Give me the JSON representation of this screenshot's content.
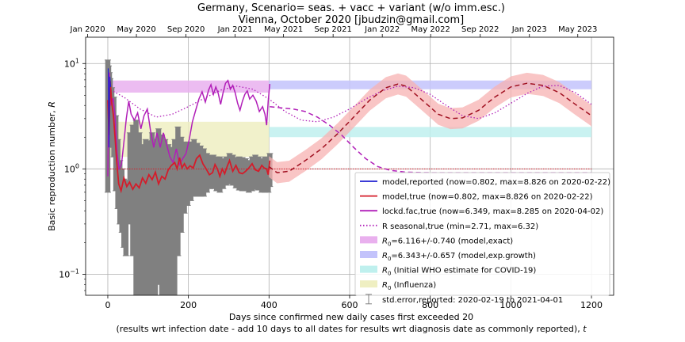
{
  "chart_data": {
    "type": "line",
    "title_line1": "Germany, Scenario= seas. + vacc + variant (w/o imm.esc.)",
    "title_line2": "Vienna, October 2020 [jbudzin@gmail.com]",
    "xlabel_line1": "Days since confirmed new daily cases first exceeded 20",
    "xlabel_line2": "(results wrt infection date - add 10 days to all dates for results wrt diagnosis date as commonly reported), ",
    "xlabel_italic": "t",
    "ylabel": "Basic reproduction number, ",
    "ylabel_italic": "R",
    "xlim": [
      -55,
      1255
    ],
    "ylim_log10": [
      -1.2,
      1.25
    ],
    "yscale": "log",
    "grid": true,
    "legend_position": "lower-right",
    "x_ticks": [
      0,
      200,
      400,
      600,
      800,
      1000,
      1200
    ],
    "y_ticks": [
      {
        "value": 0.1,
        "base": "10",
        "exp": "−1"
      },
      {
        "value": 1,
        "base": "10",
        "exp": "0"
      },
      {
        "value": 10,
        "base": "10",
        "exp": "1"
      }
    ],
    "top_axis_dates": [
      {
        "label": "Jan 2020",
        "x": -50
      },
      {
        "label": "May 2020",
        "x": 71
      },
      {
        "label": "Sep 2020",
        "x": 194
      },
      {
        "label": "Jan 2021",
        "x": 316
      },
      {
        "label": "May 2021",
        "x": 436
      },
      {
        "label": "Sep 2021",
        "x": 559
      },
      {
        "label": "Jan 2022",
        "x": 681
      },
      {
        "label": "May 2022",
        "x": 801
      },
      {
        "label": "Sep 2022",
        "x": 924
      },
      {
        "label": "Jan 2023",
        "x": 1046
      },
      {
        "label": "May 2023",
        "x": 1166
      }
    ],
    "bands": [
      {
        "name": "R0 model exact",
        "x": [
          0,
          400
        ],
        "y": [
          5.3,
          6.9
        ],
        "color": "#e9b0ee"
      },
      {
        "name": "R0 model exp growth",
        "x": [
          400,
          1200
        ],
        "y": [
          5.7,
          6.9
        ],
        "color": "#c3c3fb"
      },
      {
        "name": "R0 WHO",
        "x": [
          400,
          1200
        ],
        "y": [
          2.0,
          2.5
        ],
        "color": "#bff0ee"
      },
      {
        "name": "R0 influenza",
        "x": [
          0,
          400
        ],
        "y": [
          1.3,
          2.8
        ],
        "color": "#efefc2"
      }
    ],
    "series": {
      "model_true_observed": [
        [
          0,
          4.5
        ],
        [
          3,
          2.1
        ],
        [
          6,
          6.8
        ],
        [
          10,
          4.2
        ],
        [
          14,
          3.2
        ],
        [
          18,
          2.0
        ],
        [
          22,
          1.2
        ],
        [
          27,
          0.72
        ],
        [
          33,
          0.62
        ],
        [
          40,
          0.82
        ],
        [
          47,
          0.68
        ],
        [
          54,
          0.75
        ],
        [
          62,
          0.64
        ],
        [
          70,
          0.72
        ],
        [
          78,
          0.66
        ],
        [
          86,
          0.82
        ],
        [
          94,
          0.73
        ],
        [
          102,
          0.88
        ],
        [
          110,
          0.79
        ],
        [
          118,
          0.93
        ],
        [
          126,
          0.72
        ],
        [
          134,
          0.85
        ],
        [
          142,
          0.8
        ],
        [
          150,
          0.98
        ],
        [
          158,
          1.08
        ],
        [
          166,
          1.15
        ],
        [
          172,
          1.0
        ],
        [
          178,
          1.28
        ],
        [
          184,
          1.02
        ],
        [
          190,
          1.12
        ],
        [
          197,
          1.0
        ],
        [
          204,
          1.07
        ],
        [
          212,
          1.02
        ],
        [
          220,
          1.25
        ],
        [
          228,
          1.35
        ],
        [
          236,
          1.12
        ],
        [
          244,
          1.0
        ],
        [
          252,
          0.88
        ],
        [
          260,
          0.92
        ],
        [
          266,
          1.1
        ],
        [
          272,
          1.0
        ],
        [
          278,
          0.85
        ],
        [
          284,
          1.0
        ],
        [
          290,
          0.9
        ],
        [
          296,
          1.05
        ],
        [
          302,
          1.2
        ],
        [
          310,
          0.95
        ],
        [
          318,
          1.08
        ],
        [
          326,
          0.92
        ],
        [
          334,
          0.9
        ],
        [
          342,
          0.95
        ],
        [
          350,
          1.02
        ],
        [
          358,
          1.12
        ],
        [
          366,
          0.98
        ],
        [
          374,
          0.95
        ],
        [
          382,
          1.08
        ],
        [
          388,
          1.02
        ],
        [
          394,
          1.0
        ],
        [
          398,
          0.88
        ],
        [
          402,
          1.2
        ]
      ],
      "lockdown_true": [
        [
          0,
          0.85
        ],
        [
          1,
          1.8
        ],
        [
          2,
          3.8
        ],
        [
          4,
          8.2
        ],
        [
          8,
          4.0
        ],
        [
          13,
          4.7
        ],
        [
          18,
          3.2
        ],
        [
          23,
          1.4
        ],
        [
          28,
          1.0
        ],
        [
          34,
          1.1
        ],
        [
          40,
          1.8
        ],
        [
          46,
          3.0
        ],
        [
          52,
          4.4
        ],
        [
          58,
          3.3
        ],
        [
          66,
          2.9
        ],
        [
          74,
          3.4
        ],
        [
          82,
          2.4
        ],
        [
          90,
          3.2
        ],
        [
          98,
          3.7
        ],
        [
          106,
          2.3
        ],
        [
          114,
          1.6
        ],
        [
          122,
          2.2
        ],
        [
          130,
          1.6
        ],
        [
          138,
          2.2
        ],
        [
          146,
          1.7
        ],
        [
          154,
          1.3
        ],
        [
          162,
          1.15
        ],
        [
          170,
          1.55
        ],
        [
          178,
          1.1
        ],
        [
          186,
          1.25
        ],
        [
          194,
          1.4
        ],
        [
          202,
          1.9
        ],
        [
          210,
          2.8
        ],
        [
          218,
          3.6
        ],
        [
          226,
          4.6
        ],
        [
          234,
          5.4
        ],
        [
          242,
          4.3
        ],
        [
          250,
          5.6
        ],
        [
          256,
          6.3
        ],
        [
          262,
          5.1
        ],
        [
          268,
          6.0
        ],
        [
          274,
          5.2
        ],
        [
          280,
          4.1
        ],
        [
          286,
          5.3
        ],
        [
          292,
          6.5
        ],
        [
          298,
          6.9
        ],
        [
          304,
          5.7
        ],
        [
          310,
          6.2
        ],
        [
          316,
          5.3
        ],
        [
          322,
          4.2
        ],
        [
          328,
          3.6
        ],
        [
          334,
          4.4
        ],
        [
          340,
          5.1
        ],
        [
          346,
          5.5
        ],
        [
          352,
          4.6
        ],
        [
          360,
          5.0
        ],
        [
          368,
          4.4
        ],
        [
          376,
          3.5
        ],
        [
          384,
          3.9
        ],
        [
          390,
          3.3
        ],
        [
          394,
          2.6
        ],
        [
          398,
          4.4
        ],
        [
          402,
          6.4
        ]
      ],
      "lockdown_projection": [
        [
          402,
          3.9
        ],
        [
          430,
          3.8
        ],
        [
          460,
          3.7
        ],
        [
          490,
          3.5
        ],
        [
          520,
          3.1
        ],
        [
          550,
          2.6
        ],
        [
          580,
          2.1
        ],
        [
          610,
          1.6
        ],
        [
          640,
          1.25
        ],
        [
          670,
          1.05
        ],
        [
          700,
          0.97
        ],
        [
          740,
          0.93
        ],
        [
          800,
          0.92
        ],
        [
          900,
          0.92
        ],
        [
          1000,
          0.92
        ],
        [
          1100,
          0.92
        ],
        [
          1200,
          0.92
        ]
      ],
      "true_projection": [
        [
          400,
          1.05
        ],
        [
          420,
          0.92
        ],
        [
          450,
          0.95
        ],
        [
          490,
          1.2
        ],
        [
          530,
          1.55
        ],
        [
          570,
          2.15
        ],
        [
          610,
          3.1
        ],
        [
          650,
          4.5
        ],
        [
          690,
          5.9
        ],
        [
          720,
          6.4
        ],
        [
          740,
          6.1
        ],
        [
          780,
          4.5
        ],
        [
          820,
          3.3
        ],
        [
          850,
          3.0
        ],
        [
          880,
          3.05
        ],
        [
          920,
          3.6
        ],
        [
          960,
          4.8
        ],
        [
          1000,
          6.0
        ],
        [
          1040,
          6.5
        ],
        [
          1080,
          6.2
        ],
        [
          1120,
          5.3
        ],
        [
          1160,
          4.1
        ],
        [
          1200,
          3.2
        ]
      ],
      "projection_band_half_log": 0.1,
      "r_seasonal": [
        [
          0,
          5.8
        ],
        [
          40,
          4.8
        ],
        [
          80,
          3.7
        ],
        [
          120,
          3.1
        ],
        [
          160,
          3.3
        ],
        [
          200,
          3.9
        ],
        [
          240,
          4.7
        ],
        [
          280,
          5.6
        ],
        [
          320,
          6.1
        ],
        [
          360,
          5.7
        ],
        [
          400,
          4.6
        ],
        [
          440,
          3.5
        ],
        [
          480,
          2.9
        ],
        [
          520,
          2.8
        ],
        [
          560,
          3.1
        ],
        [
          600,
          3.7
        ],
        [
          640,
          4.6
        ],
        [
          680,
          5.5
        ],
        [
          720,
          6.1
        ],
        [
          760,
          5.9
        ],
        [
          800,
          5.1
        ],
        [
          840,
          4.0
        ],
        [
          880,
          3.2
        ],
        [
          920,
          3.0
        ],
        [
          960,
          3.4
        ],
        [
          1000,
          4.2
        ],
        [
          1040,
          5.2
        ],
        [
          1080,
          6.1
        ],
        [
          1120,
          6.2
        ],
        [
          1160,
          5.3
        ],
        [
          1200,
          4.1
        ]
      ],
      "reported_points": [
        [
          1,
          9.0
        ],
        [
          2,
          3.5
        ],
        [
          3,
          1.6
        ],
        [
          5,
          7.5
        ],
        [
          7,
          6.0
        ]
      ],
      "error_bars_1": [
        [
          0,
          10.8,
          0.6
        ],
        [
          2,
          9.5,
          1.9
        ],
        [
          4,
          8.2,
          2.8
        ],
        [
          6,
          7.2,
          1.9
        ],
        [
          10,
          5.9,
          1.6
        ],
        [
          15,
          4.8,
          1.3
        ],
        [
          20,
          3.2,
          0.62
        ],
        [
          25,
          1.9,
          0.42
        ],
        [
          30,
          1.2,
          0.3
        ],
        [
          35,
          1.0,
          0.25
        ],
        [
          40,
          0.8,
          0.18
        ],
        [
          45,
          0.78,
          0.15
        ]
      ],
      "error_bars_2": [
        [
          55,
          2.2,
          0.3
        ],
        [
          62,
          2.6,
          0.15
        ],
        [
          70,
          2.9,
          0.06
        ],
        [
          78,
          2.2,
          0.04
        ],
        [
          86,
          1.7,
          0.04
        ],
        [
          94,
          1.9,
          0.05
        ],
        [
          102,
          1.85,
          0.06
        ],
        [
          110,
          2.2,
          0.06
        ],
        [
          118,
          1.9,
          0.05
        ],
        [
          126,
          2.4,
          0.08
        ],
        [
          134,
          2.1,
          0.06
        ],
        [
          142,
          1.9,
          0.05
        ],
        [
          150,
          1.7,
          0.05
        ],
        [
          158,
          1.6,
          0.04
        ],
        [
          166,
          1.9,
          0.06
        ],
        [
          174,
          2.5,
          0.15
        ],
        [
          182,
          2.0,
          0.25
        ],
        [
          190,
          1.8,
          0.38
        ],
        [
          198,
          1.8,
          0.45
        ],
        [
          206,
          1.8,
          0.5
        ],
        [
          214,
          1.9,
          0.55
        ],
        [
          222,
          1.75,
          0.55
        ],
        [
          230,
          1.65,
          0.55
        ],
        [
          238,
          1.55,
          0.55
        ],
        [
          246,
          1.4,
          0.6
        ],
        [
          254,
          1.35,
          0.65
        ],
        [
          262,
          1.35,
          0.65
        ],
        [
          270,
          1.3,
          0.62
        ],
        [
          278,
          1.3,
          0.6
        ],
        [
          286,
          1.25,
          0.65
        ],
        [
          294,
          1.3,
          0.7
        ],
        [
          302,
          1.4,
          0.72
        ],
        [
          310,
          1.35,
          0.7
        ],
        [
          318,
          1.28,
          0.66
        ],
        [
          326,
          1.3,
          0.63
        ],
        [
          334,
          1.28,
          0.62
        ],
        [
          342,
          1.25,
          0.62
        ],
        [
          350,
          1.2,
          0.6
        ],
        [
          358,
          1.3,
          0.62
        ],
        [
          366,
          1.35,
          0.64
        ],
        [
          374,
          1.3,
          0.63
        ],
        [
          382,
          1.25,
          0.6
        ],
        [
          390,
          1.3,
          0.6
        ],
        [
          398,
          1.15,
          0.6
        ],
        [
          402,
          1.4,
          0.68
        ]
      ]
    },
    "colors": {
      "model_reported": "#1f1fd0",
      "model_true": "#d41c2a",
      "lockdown": "#b11fb8",
      "r_seasonal": "#b11fb8",
      "error_bars": "#808080",
      "projection_band": "#f7b2b2",
      "reference_line": "#d41c2a"
    },
    "legend": [
      {
        "kind": "line",
        "color": "#1f1fd0",
        "style": "solid",
        "text": "model,reported (now=0.802, max=8.826 on 2020-02-22)"
      },
      {
        "kind": "line",
        "color": "#d41c2a",
        "style": "solid",
        "text": "model,true (now=0.802, max=8.826 on 2020-02-22)"
      },
      {
        "kind": "line",
        "color": "#b11fb8",
        "style": "solid",
        "text": "lockd.fac,true (now=6.349, max=8.285 on 2020-04-02)"
      },
      {
        "kind": "line",
        "color": "#b11fb8",
        "style": "dotted",
        "text": "R seasonal,true (min=2.71, max=6.32)"
      },
      {
        "kind": "patch",
        "color": "#e9b0ee",
        "sym": "R",
        "sub": "0",
        "text": "=6.116+/-0.740 (model,exact)"
      },
      {
        "kind": "patch",
        "color": "#c3c3fb",
        "sym": "R",
        "sub": "0",
        "text": "=6.343+/-0.657 (model,exp.growth)"
      },
      {
        "kind": "patch",
        "color": "#bff0ee",
        "sym": "R",
        "sub": "0",
        "text": " (Initial WHO estimate for COVID-19)"
      },
      {
        "kind": "patch",
        "color": "#efefc2",
        "sym": "R",
        "sub": "0",
        "text": " (Influenza)"
      },
      {
        "kind": "errorbar",
        "color": "#808080",
        "text": "std.error,reported: 2020-02-19 to 2021-04-01"
      }
    ]
  }
}
